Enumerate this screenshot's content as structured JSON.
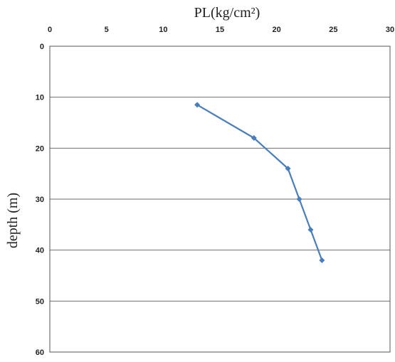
{
  "chart_data": {
    "type": "line",
    "title": "",
    "xlabel": "PL(kg/cm²)",
    "ylabel": "depth (m)",
    "xlim": [
      0,
      30
    ],
    "ylim": [
      0,
      60
    ],
    "x_axis_position": "top",
    "y_axis_inverted": true,
    "x_ticks": [
      "0",
      "5",
      "10",
      "15",
      "20",
      "25",
      "30"
    ],
    "y_ticks": [
      "0",
      "10",
      "20",
      "30",
      "40",
      "50",
      "60"
    ],
    "grid": "horizontal",
    "legend": "none",
    "series": [
      {
        "color": "#4a7ebb",
        "marker": "diamond",
        "points": [
          {
            "x": 13,
            "y": 11.5
          },
          {
            "x": 18,
            "y": 18
          },
          {
            "x": 21,
            "y": 24
          },
          {
            "x": 22,
            "y": 30
          },
          {
            "x": 23,
            "y": 36
          },
          {
            "x": 24,
            "y": 42
          }
        ]
      }
    ]
  }
}
